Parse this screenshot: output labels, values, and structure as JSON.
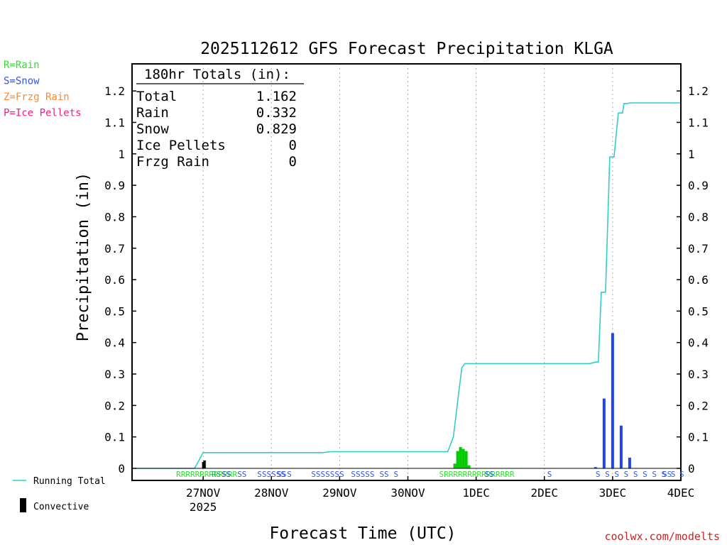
{
  "chart_data": {
    "type": "bar",
    "title": "2025112612 GFS Forecast Precipitation KLGA",
    "xlabel": "Forecast Time (UTC)",
    "ylabel": "Precipitation (in)",
    "ylim": [
      0,
      1.27
    ],
    "yticks": [
      "0",
      "0.1",
      "0.2",
      "0.3",
      "0.4",
      "0.5",
      "0.6",
      "0.7",
      "0.8",
      "0.9",
      "1",
      "1.1",
      "1.2"
    ],
    "x_range_hours": [
      -13,
      180
    ],
    "x_ticks": [
      {
        "label": "27NOV",
        "hour": 12,
        "sublabel": "2025"
      },
      {
        "label": "28NOV",
        "hour": 36
      },
      {
        "label": "29NOV",
        "hour": 60
      },
      {
        "label": "30NOV",
        "hour": 84
      },
      {
        "label": "1DEC",
        "hour": 108
      },
      {
        "label": "2DEC",
        "hour": 132
      },
      {
        "label": "3DEC",
        "hour": 156
      },
      {
        "label": "4DEC",
        "hour": 180
      }
    ],
    "grid": "vertical-dotted",
    "legend": "left",
    "series": [
      {
        "name": "Running Total",
        "color": "#33cccc",
        "points": [
          [
            -12,
            0
          ],
          [
            9,
            0
          ],
          [
            12,
            0.05
          ],
          [
            54,
            0.05
          ],
          [
            57,
            0.053
          ],
          [
            98,
            0.053
          ],
          [
            100,
            0.1
          ],
          [
            102,
            0.25
          ],
          [
            103,
            0.32
          ],
          [
            104,
            0.333
          ],
          [
            148,
            0.333
          ],
          [
            150,
            0.338
          ],
          [
            151,
            0.338
          ],
          [
            152,
            0.56
          ],
          [
            153.5,
            0.56
          ],
          [
            155,
            0.99
          ],
          [
            156.5,
            0.99
          ],
          [
            158,
            1.13
          ],
          [
            159.5,
            1.13
          ],
          [
            160,
            1.16
          ],
          [
            161,
            1.16
          ],
          [
            162,
            1.162
          ],
          [
            180,
            1.162
          ]
        ]
      },
      {
        "name": "Convective",
        "color": "#000000",
        "values": [
          [
            12,
            0.02
          ],
          [
            12.5,
            0.025
          ]
        ]
      }
    ],
    "precip_bars": [
      {
        "hour": 100.5,
        "value": 0.015,
        "type": "rain"
      },
      {
        "hour": 101.5,
        "value": 0.055,
        "type": "rain"
      },
      {
        "hour": 102.5,
        "value": 0.068,
        "type": "rain"
      },
      {
        "hour": 103.5,
        "value": 0.062,
        "type": "rain"
      },
      {
        "hour": 104.5,
        "value": 0.055,
        "type": "rain"
      },
      {
        "hour": 105.5,
        "value": 0.01,
        "type": "rain"
      },
      {
        "hour": 12.5,
        "value": 0.025,
        "type": "rain"
      },
      {
        "hour": 150,
        "value": 0.004,
        "type": "snow"
      },
      {
        "hour": 153,
        "value": 0.222,
        "type": "snow"
      },
      {
        "hour": 156,
        "value": 0.43,
        "type": "snow"
      },
      {
        "hour": 159,
        "value": 0.136,
        "type": "snow"
      },
      {
        "hour": 162,
        "value": 0.034,
        "type": "snow"
      }
    ],
    "ptype_row": [
      {
        "text": "RRRRRRRRRRRRR",
        "hour": 2.5,
        "type": "rain"
      },
      {
        "text": "RS",
        "hour": 15,
        "type": "mixed"
      },
      {
        "text": "SS",
        "hour": 18.5,
        "type": "snow"
      },
      {
        "text": "SS",
        "hour": 24,
        "type": "snow"
      },
      {
        "text": "SSSSSS",
        "hour": 31,
        "type": "snow"
      },
      {
        "text": "SS",
        "hour": 38,
        "type": "snow"
      },
      {
        "text": "S",
        "hour": 41.5,
        "type": "snow"
      },
      {
        "text": "SSSSSSS",
        "hour": 50,
        "type": "snow"
      },
      {
        "text": "SSSSS",
        "hour": 64,
        "type": "snow"
      },
      {
        "text": "SS",
        "hour": 74,
        "type": "snow"
      },
      {
        "text": "S",
        "hour": 79,
        "type": "snow"
      },
      {
        "text": "SRRRRRRRRRRRRRRR",
        "hour": 95,
        "type": "rain"
      },
      {
        "text": "SS",
        "hour": 111,
        "type": "snow"
      },
      {
        "text": "S",
        "hour": 133,
        "type": "snow"
      },
      {
        "text": "S S S S S S S S S",
        "hour": 150,
        "type": "snow"
      },
      {
        "text": "SS",
        "hour": 173.5,
        "type": "snow"
      },
      {
        "text": "S",
        "hour": 179.5,
        "type": "snow"
      }
    ],
    "totals_box": {
      "heading": "180hr Totals (in):",
      "rows": [
        {
          "label": "Total",
          "value": "1.162"
        },
        {
          "label": "Rain",
          "value": "0.332"
        },
        {
          "label": "Snow",
          "value": "0.829"
        },
        {
          "label": "Ice Pellets",
          "value": "0"
        },
        {
          "label": "Frzg Rain",
          "value": "0"
        }
      ]
    }
  },
  "legend_ptype": [
    {
      "text": "R=Rain",
      "color": "#33dd33"
    },
    {
      "text": "S=Snow",
      "color": "#3355ee"
    },
    {
      "text": "Z=Frzg Rain",
      "color": "#ff8833"
    },
    {
      "text": "P=Ice Pellets",
      "color": "#ee2288"
    }
  ],
  "legend_lines": {
    "running_total": "Running Total",
    "convective": "Convective"
  },
  "colors": {
    "rain": "#00cc00",
    "snow": "#2244ee",
    "total": "#33cccc",
    "convective": "#000000",
    "grid": "#aaaaaa"
  },
  "credit": "coolwx.com/modelts"
}
